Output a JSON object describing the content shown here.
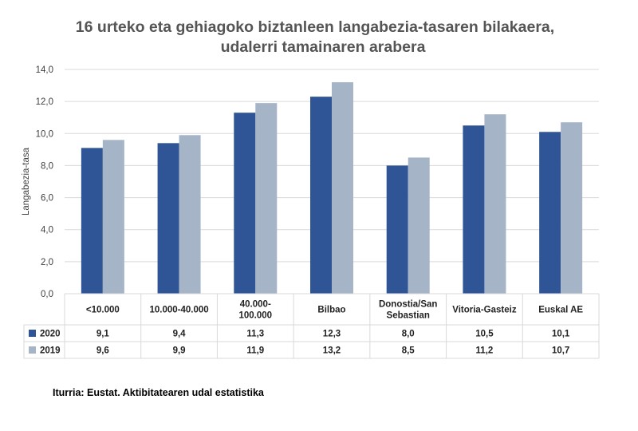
{
  "title_line1": "16 urteko eta gehiagoko biztanleen langabezia-tasaren bilakaera,",
  "title_line2": "udalerri tamainaren arabera",
  "source": "Iturria: Eustat. Aktibitatearen udal estatistika",
  "colors": {
    "series_2020": "#2f5597",
    "series_2019": "#a6b4c8",
    "grid": "#d9d9d9",
    "text": "#404040"
  },
  "chart_data": {
    "type": "bar",
    "title": "16 urteko eta gehiagoko biztanleen langabezia-tasaren bilakaera, udalerri tamainaren arabera",
    "ylabel": "Langabezia-tasa",
    "xlabel": "",
    "ylim": [
      0,
      14
    ],
    "yticks": [
      "0,0",
      "2,0",
      "4,0",
      "6,0",
      "8,0",
      "10,0",
      "12,0",
      "14,0"
    ],
    "grid": true,
    "categories": [
      [
        "<10.000"
      ],
      [
        "10.000-40.000"
      ],
      [
        "40.000-",
        "100.000"
      ],
      [
        "Bilbao"
      ],
      [
        "Donostia/San",
        "Sebastian"
      ],
      [
        "Vitoria-Gasteiz"
      ],
      [
        "Euskal AE"
      ]
    ],
    "series": [
      {
        "name": "2020",
        "values": [
          9.1,
          9.4,
          11.3,
          12.3,
          8.0,
          10.5,
          10.1
        ],
        "labels": [
          "9,1",
          "9,4",
          "11,3",
          "12,3",
          "8,0",
          "10,5",
          "10,1"
        ]
      },
      {
        "name": "2019",
        "values": [
          9.6,
          9.9,
          11.9,
          13.2,
          8.5,
          11.2,
          10.7
        ],
        "labels": [
          "9,6",
          "9,9",
          "11,9",
          "13,2",
          "8,5",
          "11,2",
          "10,7"
        ]
      }
    ],
    "legend": "data-table"
  }
}
